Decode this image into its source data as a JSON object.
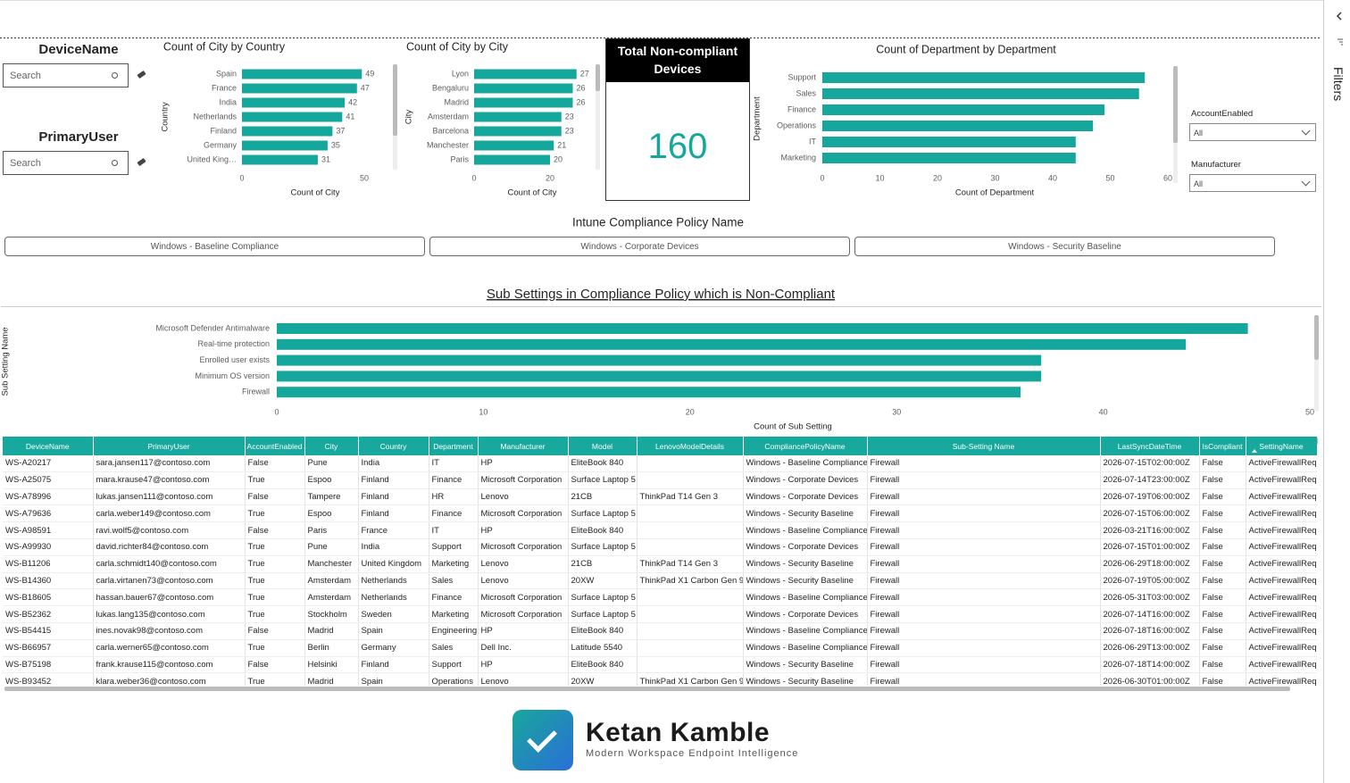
{
  "filters_pane": {
    "title": "Filters"
  },
  "slicers": {
    "device_name": {
      "title": "DeviceName",
      "placeholder": "Search"
    },
    "primary_user": {
      "title": "PrimaryUser",
      "placeholder": "Search"
    },
    "account_enabled": {
      "title": "AccountEnabled",
      "selected": "All"
    },
    "manufacturer": {
      "title": "Manufacturer",
      "selected": "All"
    },
    "policy": {
      "title": "Intune Compliance Policy Name",
      "options": [
        "Windows - Baseline Compliance",
        "Windows - Corporate Devices",
        "Windows - Security Baseline"
      ]
    }
  },
  "card": {
    "title": "Total Non-compliant Devices",
    "value": 160
  },
  "chart_data": [
    {
      "type": "bar",
      "title": "Count of City by Country",
      "categories": [
        "Spain",
        "France",
        "India",
        "Netherlands",
        "Finland",
        "Germany",
        "United King…"
      ],
      "values": [
        49,
        47,
        42,
        41,
        37,
        35,
        31
      ],
      "xlim": [
        0,
        50
      ],
      "xticks": [
        0,
        50
      ],
      "xlabel": "Count of City",
      "ylabel": "Country",
      "color": "#16a79c",
      "data_labels": true
    },
    {
      "type": "bar",
      "title": "Count of City by City",
      "categories": [
        "Lyon",
        "Bengaluru",
        "Madrid",
        "Amsterdam",
        "Barcelona",
        "Manchester",
        "Paris"
      ],
      "values": [
        27,
        26,
        26,
        23,
        23,
        21,
        20
      ],
      "xlim": [
        0,
        28
      ],
      "xticks": [
        0,
        20
      ],
      "xlabel": "Count of City",
      "ylabel": "City",
      "color": "#16a79c",
      "data_labels": true
    },
    {
      "type": "bar",
      "title": "Count of Department by Department",
      "categories": [
        "Support",
        "Sales",
        "Finance",
        "Operations",
        "IT",
        "Marketing"
      ],
      "values": [
        56,
        55,
        49,
        47,
        44,
        44
      ],
      "xlim": [
        0,
        60
      ],
      "xticks": [
        0,
        10,
        20,
        30,
        40,
        50,
        60
      ],
      "xlabel": "Count of Department",
      "ylabel": "Department",
      "color": "#16a79c",
      "data_labels": false
    },
    {
      "type": "bar",
      "title": "Sub Settings in Compliance Policy which is Non-Compliant",
      "categories": [
        "Microsoft Defender Antimalware",
        "Real-time protection",
        "Enrolled user exists",
        "Minimum OS version",
        "Firewall"
      ],
      "values": [
        47,
        44,
        37,
        37,
        36
      ],
      "xlim": [
        0,
        50
      ],
      "xticks": [
        0,
        10,
        20,
        30,
        40,
        50
      ],
      "xlabel": "Count of Sub Setting",
      "ylabel": "Sub Setting Name",
      "color": "#16a79c",
      "data_labels": false
    }
  ],
  "table": {
    "columns": [
      "DeviceName",
      "PrimaryUser",
      "AccountEnabled",
      "City",
      "Country",
      "Department",
      "Manufacturer",
      "Model",
      "LenovoModelDetails",
      "CompliancePolicyName",
      "Sub-Setting Name",
      "LastSyncDateTime",
      "IsCompliant",
      "SettingName"
    ],
    "rows": [
      [
        "WS-A20217",
        "sara.jansen117@contoso.com",
        "False",
        "Pune",
        "India",
        "IT",
        "HP",
        "EliteBook 840",
        null,
        "Windows - Baseline Compliance",
        "Firewall",
        "2026-07-15T02:00:00Z",
        "False",
        "ActiveFirewallReq"
      ],
      [
        "WS-A25075",
        "mara.krause47@contoso.com",
        "True",
        "Espoo",
        "Finland",
        "Finance",
        "Microsoft Corporation",
        "Surface Laptop 5",
        null,
        "Windows - Corporate Devices",
        "Firewall",
        "2026-07-14T23:00:00Z",
        "False",
        "ActiveFirewallReq"
      ],
      [
        "WS-A78996",
        "lukas.jansen111@contoso.com",
        "False",
        "Tampere",
        "Finland",
        "HR",
        "Lenovo",
        "21CB",
        "ThinkPad T14 Gen 3",
        "Windows - Corporate Devices",
        "Firewall",
        "2026-07-19T06:00:00Z",
        "False",
        "ActiveFirewallReq"
      ],
      [
        "WS-A79636",
        "carla.weber149@contoso.com",
        "True",
        "Espoo",
        "Finland",
        "Finance",
        "Microsoft Corporation",
        "Surface Laptop 5",
        null,
        "Windows - Security Baseline",
        "Firewall",
        "2026-07-15T06:00:00Z",
        "False",
        "ActiveFirewallReq"
      ],
      [
        "WS-A98591",
        "ravi.wolf5@contoso.com",
        "False",
        "Paris",
        "France",
        "IT",
        "HP",
        "EliteBook 840",
        null,
        "Windows - Baseline Compliance",
        "Firewall",
        "2026-03-21T16:00:00Z",
        "False",
        "ActiveFirewallReq"
      ],
      [
        "WS-A99930",
        "david.richter84@contoso.com",
        "True",
        "Pune",
        "India",
        "Support",
        "Microsoft Corporation",
        "Surface Laptop 5",
        null,
        "Windows - Corporate Devices",
        "Firewall",
        "2026-07-15T01:00:00Z",
        "False",
        "ActiveFirewallReq"
      ],
      [
        "WS-B11206",
        "carla.schmidt140@contoso.com",
        "True",
        "Manchester",
        "United Kingdom",
        "Marketing",
        "Lenovo",
        "21CB",
        "ThinkPad T14 Gen 3",
        "Windows - Security Baseline",
        "Firewall",
        "2026-06-29T18:00:00Z",
        "False",
        "ActiveFirewallReq"
      ],
      [
        "WS-B14360",
        "carla.virtanen73@contoso.com",
        "True",
        "Amsterdam",
        "Netherlands",
        "Sales",
        "Lenovo",
        "20XW",
        "ThinkPad X1 Carbon Gen 9",
        "Windows - Security Baseline",
        "Firewall",
        "2026-07-19T05:00:00Z",
        "False",
        "ActiveFirewallReq"
      ],
      [
        "WS-B18605",
        "hassan.bauer67@contoso.com",
        "True",
        "Amsterdam",
        "Netherlands",
        "Finance",
        "Microsoft Corporation",
        "Surface Laptop 5",
        null,
        "Windows - Baseline Compliance",
        "Firewall",
        "2026-05-31T03:00:00Z",
        "False",
        "ActiveFirewallReq"
      ],
      [
        "WS-B52362",
        "lukas.lang135@contoso.com",
        "True",
        "Stockholm",
        "Sweden",
        "Marketing",
        "Microsoft Corporation",
        "Surface Laptop 5",
        null,
        "Windows - Corporate Devices",
        "Firewall",
        "2026-07-14T16:00:00Z",
        "False",
        "ActiveFirewallReq"
      ],
      [
        "WS-B54415",
        "ines.novak98@contoso.com",
        "False",
        "Madrid",
        "Spain",
        "Engineering",
        "HP",
        "EliteBook 840",
        null,
        "Windows - Baseline Compliance",
        "Firewall",
        "2026-07-18T16:00:00Z",
        "False",
        "ActiveFirewallReq"
      ],
      [
        "WS-B66957",
        "carla.werner65@contoso.com",
        "True",
        "Berlin",
        "Germany",
        "Sales",
        "Dell Inc.",
        "Latitude 5540",
        null,
        "Windows - Baseline Compliance",
        "Firewall",
        "2026-06-29T13:00:00Z",
        "False",
        "ActiveFirewallReq"
      ],
      [
        "WS-B75198",
        "frank.krause115@contoso.com",
        "False",
        "Helsinki",
        "Finland",
        "Support",
        "HP",
        "EliteBook 840",
        null,
        "Windows - Security Baseline",
        "Firewall",
        "2026-07-18T14:00:00Z",
        "False",
        "ActiveFirewallReq"
      ],
      [
        "WS-B93452",
        "klara.weber36@contoso.com",
        "True",
        "Madrid",
        "Spain",
        "Operations",
        "Lenovo",
        "20XW",
        "ThinkPad X1 Carbon Gen 9",
        "Windows - Security Baseline",
        "Firewall",
        "2026-06-30T01:00:00Z",
        "False",
        "ActiveFirewallReq"
      ]
    ]
  },
  "footer": {
    "name": "Ketan Kamble",
    "tagline": "Modern Workspace Endpoint Intelligence"
  }
}
